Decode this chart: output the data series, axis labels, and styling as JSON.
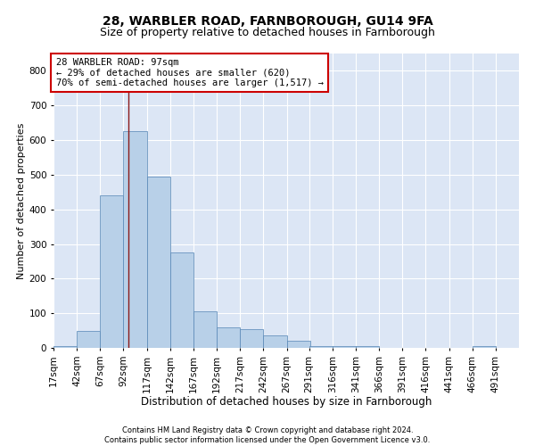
{
  "title1": "28, WARBLER ROAD, FARNBOROUGH, GU14 9FA",
  "title2": "Size of property relative to detached houses in Farnborough",
  "xlabel": "Distribution of detached houses by size in Farnborough",
  "ylabel": "Number of detached properties",
  "footnote1": "Contains HM Land Registry data © Crown copyright and database right 2024.",
  "footnote2": "Contains public sector information licensed under the Open Government Licence v3.0.",
  "annotation_line1": "28 WARBLER ROAD: 97sqm",
  "annotation_line2": "← 29% of detached houses are smaller (620)",
  "annotation_line3": "70% of semi-detached houses are larger (1,517) →",
  "property_sqm": 97,
  "bar_color": "#b8d0e8",
  "bar_edge_color": "#5585b5",
  "vline_color": "#8b1a1a",
  "annotation_box_color": "#ffffff",
  "annotation_box_edge": "#cc0000",
  "background_color": "#dce6f5",
  "bin_edges": [
    17,
    42,
    67,
    92,
    117,
    142,
    167,
    192,
    217,
    242,
    267,
    291,
    316,
    341,
    366,
    391,
    416,
    441,
    466,
    491,
    516
  ],
  "bin_heights": [
    5,
    50,
    440,
    625,
    495,
    275,
    105,
    60,
    55,
    35,
    20,
    5,
    5,
    5,
    0,
    0,
    0,
    0,
    5,
    0,
    0
  ],
  "ylim": [
    0,
    850
  ],
  "yticks": [
    0,
    100,
    200,
    300,
    400,
    500,
    600,
    700,
    800
  ],
  "grid_color": "#ffffff",
  "tick_label_fontsize": 7.5,
  "title1_fontsize": 10,
  "title2_fontsize": 9,
  "xlabel_fontsize": 8.5,
  "ylabel_fontsize": 8,
  "annot_fontsize": 7.5,
  "footnote_fontsize": 6
}
